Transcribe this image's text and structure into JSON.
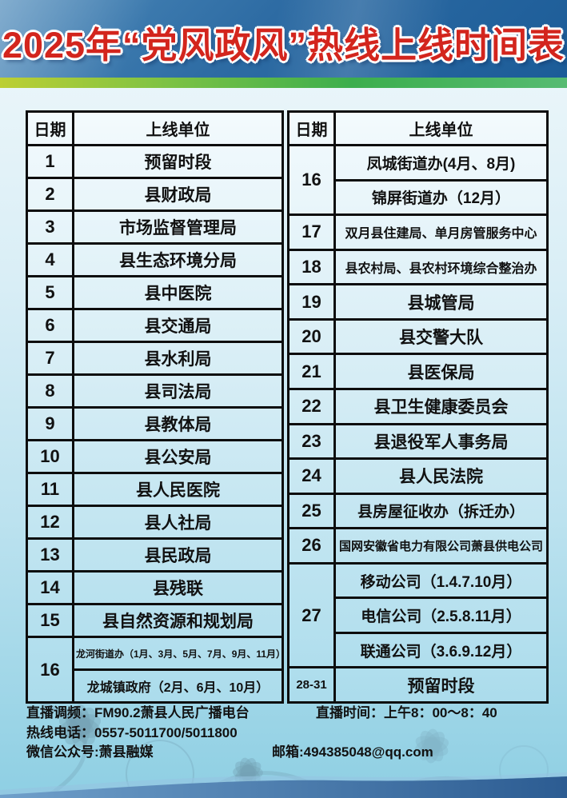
{
  "title": "2025年“党风政风”热线上线时间表",
  "table_header": {
    "date_label": "日期",
    "unit_label": "上线单位"
  },
  "left_table": {
    "rows": [
      {
        "date": "1",
        "units": [
          "预留时段"
        ]
      },
      {
        "date": "2",
        "units": [
          "县财政局"
        ]
      },
      {
        "date": "3",
        "units": [
          "市场监督管理局"
        ]
      },
      {
        "date": "4",
        "units": [
          "县生态环境分局"
        ]
      },
      {
        "date": "5",
        "units": [
          "县中医院"
        ]
      },
      {
        "date": "6",
        "units": [
          "县交通局"
        ]
      },
      {
        "date": "7",
        "units": [
          "县水利局"
        ]
      },
      {
        "date": "8",
        "units": [
          "县司法局"
        ]
      },
      {
        "date": "9",
        "units": [
          "县教体局"
        ]
      },
      {
        "date": "10",
        "units": [
          "县公安局"
        ]
      },
      {
        "date": "11",
        "units": [
          "县人民医院"
        ]
      },
      {
        "date": "12",
        "units": [
          "县人社局"
        ]
      },
      {
        "date": "13",
        "units": [
          "县民政局"
        ]
      },
      {
        "date": "14",
        "units": [
          "县残联"
        ]
      },
      {
        "date": "15",
        "units": [
          "县自然资源和规划局"
        ]
      },
      {
        "date": "16",
        "units": [
          "龙河街道办（1月、3月、5月、7月、9月、11月）",
          "龙城镇政府（2月、6月、10月）"
        ]
      }
    ]
  },
  "right_table": {
    "rows": [
      {
        "date": "16",
        "units": [
          "凤城街道办(4月、8月)",
          "锦屏街道办（12月）"
        ]
      },
      {
        "date": "17",
        "units": [
          "双月县住建局、单月房管服务中心"
        ]
      },
      {
        "date": "18",
        "units": [
          "县农村局、县农村环境综合整治办"
        ]
      },
      {
        "date": "19",
        "units": [
          "县城管局"
        ]
      },
      {
        "date": "20",
        "units": [
          "县交警大队"
        ]
      },
      {
        "date": "21",
        "units": [
          "县医保局"
        ]
      },
      {
        "date": "22",
        "units": [
          "县卫生健康委员会"
        ]
      },
      {
        "date": "23",
        "units": [
          "县退役军人事务局"
        ]
      },
      {
        "date": "24",
        "units": [
          "县人民法院"
        ]
      },
      {
        "date": "25",
        "units": [
          "县房屋征收办（拆迁办）"
        ]
      },
      {
        "date": "26",
        "units": [
          "国网安徽省电力有限公司萧县供电公司"
        ]
      },
      {
        "date": "27",
        "units": [
          "移动公司（1.4.7.10月）",
          "电信公司（2.5.8.11月）",
          "联通公司（3.6.9.12月）"
        ]
      },
      {
        "date": "28-31",
        "units": [
          "预留时段"
        ],
        "tall": true
      }
    ]
  },
  "footer": {
    "frequency": "直播调频：FM90.2萧县人民广播电台",
    "time": "直播时间：上午8：00～8：40",
    "phone": "热线电话：0557-5011700/5011800",
    "wechat": "微信公众号:萧县融媒",
    "email": "邮箱:494385048@qq.com"
  },
  "colors": {
    "title_red": "#d3251d",
    "header_blue_top": "#4d8aba",
    "header_blue_bottom": "#1c5c98",
    "stripe_yellow_green": "#bccf33",
    "stripe_green": "#3cae4d",
    "body_top": "#f0f8fb",
    "body_bottom": "#8ecfe3",
    "table_cell_top": "#f3fafd",
    "table_cell_bottom": "#abdcec",
    "border_black": "#0d0d0d",
    "text_black": "#111111",
    "wave_left": "#6f9fca",
    "wave_right": "#2c5c92"
  }
}
